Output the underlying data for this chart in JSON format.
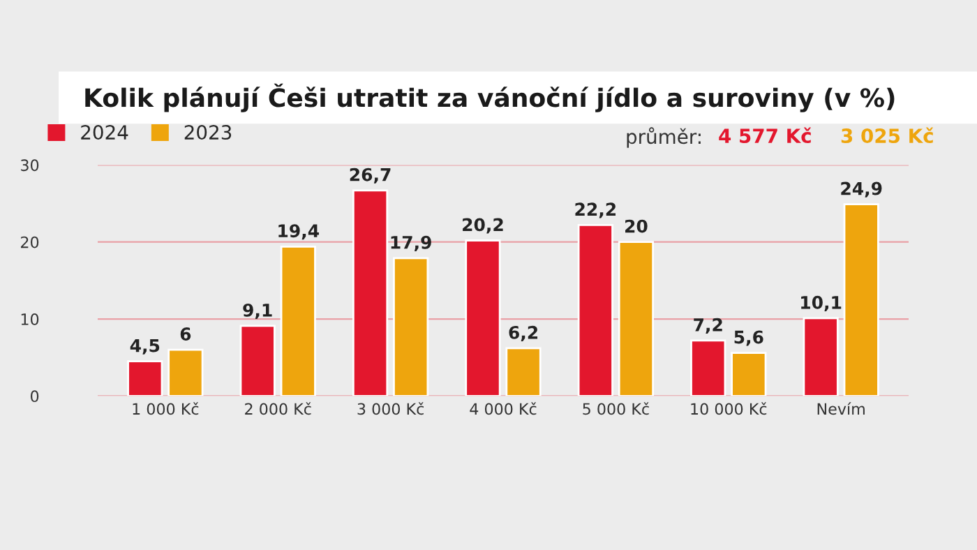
{
  "chart_data": {
    "type": "bar",
    "title": "Kolik plánují Češi utratit za vánoční jídlo a suroviny (v %)",
    "categories": [
      "1 000 Kč",
      "2 000 Kč",
      "3 000 Kč",
      "4 000 Kč",
      "5 000 Kč",
      "10 000 Kč",
      "Nevím"
    ],
    "series": [
      {
        "name": "2024",
        "color": "#e3172d",
        "values": [
          4.5,
          9.1,
          26.7,
          20.2,
          22.2,
          7.2,
          10.1
        ],
        "value_labels": [
          "4,5",
          "9,1",
          "26,7",
          "20,2",
          "22,2",
          "7,2",
          "10,1"
        ]
      },
      {
        "name": "2023",
        "color": "#eea50d",
        "values": [
          6,
          19.4,
          17.9,
          6.2,
          20,
          5.6,
          24.9
        ],
        "value_labels": [
          "6",
          "19,4",
          "17,9",
          "6,2",
          "20",
          "5,6",
          "24,9"
        ]
      }
    ],
    "annotations": [
      "průměr:",
      "4 577 Kč",
      "3 025 Kč"
    ],
    "ylim": [
      0,
      30
    ],
    "yticks": [
      0,
      10,
      20,
      30
    ],
    "grid": "y",
    "legend": "top left"
  }
}
